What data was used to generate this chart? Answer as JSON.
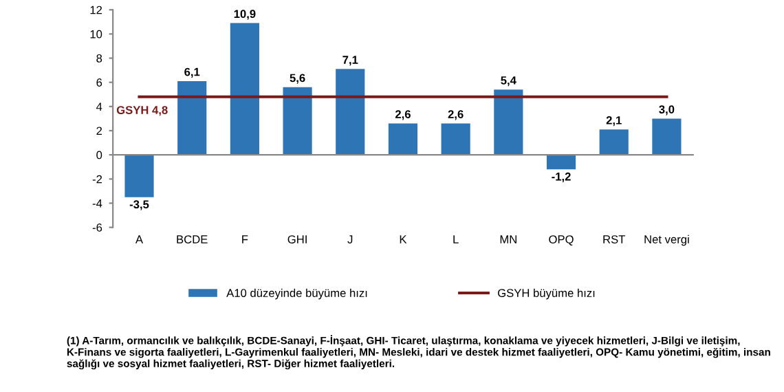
{
  "chart_data": {
    "type": "bar",
    "categories": [
      "A",
      "BCDE",
      "F",
      "GHI",
      "J",
      "K",
      "L",
      "MN",
      "OPQ",
      "RST",
      "Net vergi"
    ],
    "series": [
      {
        "name": "A10 düzeyinde büyüme hızı",
        "color": "#2e75b6",
        "values": [
          -3.5,
          6.1,
          10.9,
          5.6,
          7.1,
          2.6,
          2.6,
          5.4,
          -1.2,
          2.1,
          3.0
        ],
        "value_labels": [
          "-3,5",
          "6,1",
          "10,9",
          "5,6",
          "7,1",
          "2,6",
          "2,6",
          "5,4",
          "-1,2",
          "2,1",
          "3,0"
        ]
      },
      {
        "name": "GSYH büyüme hızı",
        "type": "line",
        "color": "#7b1a1a",
        "values": [
          4.8,
          4.8,
          4.8,
          4.8,
          4.8,
          4.8,
          4.8,
          4.8,
          4.8,
          4.8,
          4.8
        ]
      }
    ],
    "ylim": [
      -6,
      12
    ],
    "yticks": [
      -6,
      -4,
      -2,
      0,
      2,
      4,
      6,
      8,
      10,
      12
    ],
    "legend": "bottom",
    "annotations": [
      {
        "text": "GSYH 4,8",
        "x": "A",
        "y": 4.8
      },
      "(1) A-Tarım, ormancılık ve balıkçılık, BCDE-Sanayi, F-İnşaat, GHI- Ticaret, ulaştırma, konaklama ve yiyecek hizmetleri, J-Bilgi ve iletişim, K-Finans ve sigorta faaliyetleri, L-Gayrimenkul faaliyetleri, MN- Mesleki, idari ve destek hizmet faaliyetleri, OPQ- Kamu yönetimi, eğitim, insan sağlığı ve sosyal hizmet faaliyetleri, RST- Diğer hizmet faaliyetleri."
    ]
  }
}
